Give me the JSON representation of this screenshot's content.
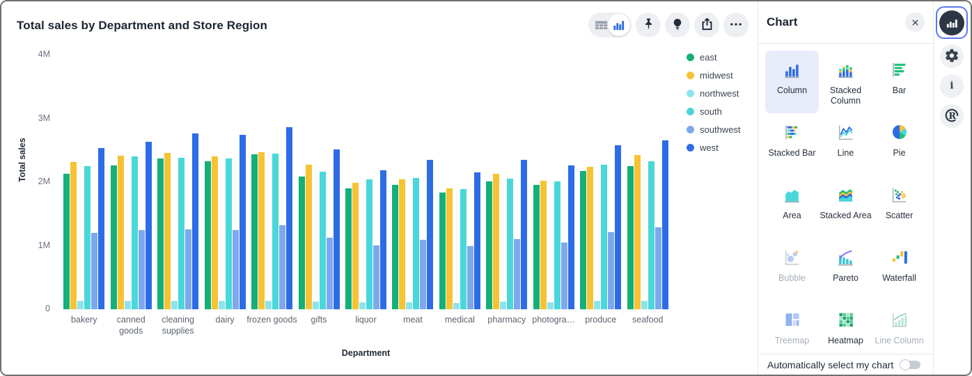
{
  "chart_data": {
    "type": "bar",
    "title": "Total sales by Department and Store Region",
    "xlabel": "Department",
    "ylabel": "Total sales",
    "value_unit": "M",
    "ylim": [
      0,
      4000000
    ],
    "yticks": [
      "0",
      "1M",
      "2M",
      "3M",
      "4M"
    ],
    "grid": false,
    "legend_position": "right",
    "categories": [
      "bakery",
      "canned goods",
      "cleaning supplies",
      "dairy",
      "frozen goods",
      "gifts",
      "liquor",
      "meat",
      "medical",
      "pharmacy",
      "photogra…",
      "produce",
      "seafood"
    ],
    "series": [
      {
        "name": "east",
        "color": "#15b077",
        "values": [
          2.13,
          2.26,
          2.37,
          2.33,
          2.44,
          2.09,
          1.9,
          1.96,
          1.84,
          2.01,
          1.96,
          2.17,
          2.25
        ]
      },
      {
        "name": "midwest",
        "color": "#f7c233",
        "values": [
          2.32,
          2.42,
          2.46,
          2.4,
          2.47,
          2.27,
          1.99,
          2.04,
          1.9,
          2.13,
          2.02,
          2.24,
          2.43
        ]
      },
      {
        "name": "northwest",
        "color": "#8de3ec",
        "values": [
          0.13,
          0.13,
          0.13,
          0.13,
          0.13,
          0.12,
          0.11,
          0.11,
          0.1,
          0.12,
          0.11,
          0.13,
          0.13
        ]
      },
      {
        "name": "south",
        "color": "#49d7d9",
        "values": [
          2.25,
          2.4,
          2.38,
          2.37,
          2.45,
          2.16,
          2.04,
          2.07,
          1.89,
          2.05,
          2.01,
          2.27,
          2.33
        ]
      },
      {
        "name": "southwest",
        "color": "#7ea8ed",
        "values": [
          1.2,
          1.25,
          1.26,
          1.25,
          1.32,
          1.13,
          1.01,
          1.09,
          1.0,
          1.1,
          1.05,
          1.21,
          1.29
        ]
      },
      {
        "name": "west",
        "color": "#2d6ce5",
        "values": [
          2.54,
          2.63,
          2.77,
          2.74,
          2.86,
          2.51,
          2.19,
          2.35,
          2.15,
          2.35,
          2.26,
          2.58,
          2.66
        ]
      }
    ]
  },
  "toolbar": {
    "view_toggle": {
      "options": [
        "table",
        "chart"
      ],
      "active": "chart"
    },
    "buttons": [
      {
        "name": "pin"
      },
      {
        "name": "insight"
      },
      {
        "name": "share"
      },
      {
        "name": "more"
      }
    ]
  },
  "panel": {
    "title": "Chart",
    "chart_types": [
      {
        "label": "Column",
        "icon": "column",
        "selected": true,
        "enabled": true
      },
      {
        "label": "Stacked Column",
        "icon": "stacked-column",
        "selected": false,
        "enabled": true
      },
      {
        "label": "Bar",
        "icon": "bar",
        "selected": false,
        "enabled": true
      },
      {
        "label": "Stacked Bar",
        "icon": "stacked-bar",
        "selected": false,
        "enabled": true
      },
      {
        "label": "Line",
        "icon": "line",
        "selected": false,
        "enabled": true
      },
      {
        "label": "Pie",
        "icon": "pie",
        "selected": false,
        "enabled": true
      },
      {
        "label": "Area",
        "icon": "area",
        "selected": false,
        "enabled": true
      },
      {
        "label": "Stacked Area",
        "icon": "stacked-area",
        "selected": false,
        "enabled": true
      },
      {
        "label": "Scatter",
        "icon": "scatter",
        "selected": false,
        "enabled": true
      },
      {
        "label": "Bubble",
        "icon": "bubble",
        "selected": false,
        "enabled": false
      },
      {
        "label": "Pareto",
        "icon": "pareto",
        "selected": false,
        "enabled": true
      },
      {
        "label": "Waterfall",
        "icon": "waterfall",
        "selected": false,
        "enabled": true
      },
      {
        "label": "Treemap",
        "icon": "treemap",
        "selected": false,
        "enabled": false
      },
      {
        "label": "Heatmap",
        "icon": "heatmap",
        "selected": false,
        "enabled": true
      },
      {
        "label": "Line Column",
        "icon": "line-column",
        "selected": false,
        "enabled": false
      }
    ],
    "footer": {
      "label": "Automatically select my chart",
      "toggle": "off"
    }
  },
  "sidebar": {
    "items": [
      {
        "name": "chart",
        "icon": "chart-columns-white",
        "selected": true
      },
      {
        "name": "settings",
        "icon": "gear",
        "selected": false
      },
      {
        "name": "info",
        "icon": "info",
        "selected": false
      },
      {
        "name": "r-console",
        "icon": "r-logo",
        "selected": false
      }
    ]
  },
  "colors": {
    "accent": "#5a78f0",
    "selected_tile_bg": "#e8ecf9",
    "icon_dark": "#232d3b"
  }
}
